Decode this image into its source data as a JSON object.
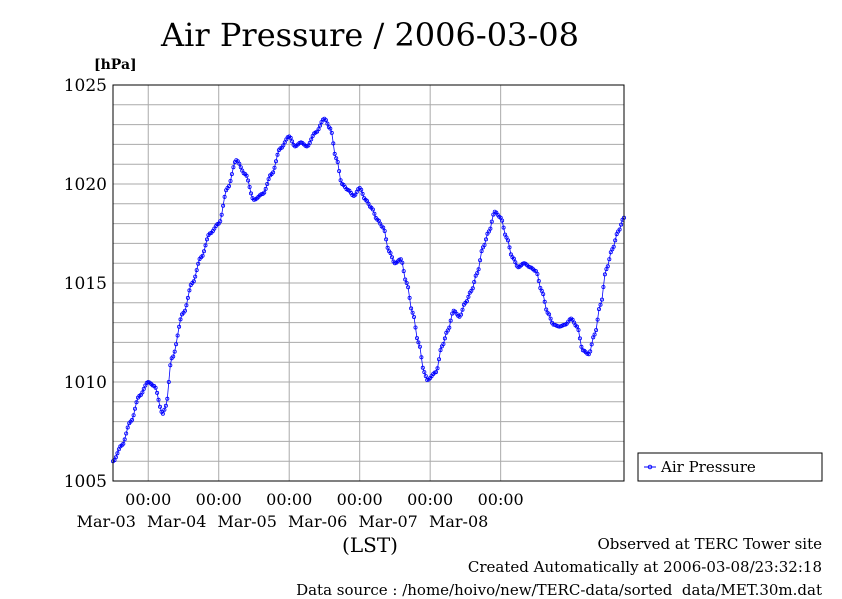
{
  "chart_data": {
    "type": "line",
    "title": "Air Pressure / 2006-03-08",
    "ylabel": "[hPa]",
    "xlabel": "(LST)",
    "ylim": [
      1005,
      1025
    ],
    "yticks": [
      1005,
      1010,
      1015,
      1020,
      1025
    ],
    "xlim": [
      "2006-03-02T12:00",
      "2006-03-08T24:00"
    ],
    "xticks": [
      {
        "time": "00:00",
        "date": "Mar-03"
      },
      {
        "time": "00:00",
        "date": "Mar-04"
      },
      {
        "time": "00:00",
        "date": "Mar-05"
      },
      {
        "time": "00:00",
        "date": "Mar-06"
      },
      {
        "time": "00:00",
        "date": "Mar-07"
      },
      {
        "time": "00:00",
        "date": "Mar-08"
      }
    ],
    "grid": true,
    "legend": "right",
    "series": [
      {
        "name": "Air Pressure",
        "color": "#0000ff",
        "x_hours_from": "2006-03-02T12:00",
        "points": [
          [
            0,
            1006.0
          ],
          [
            3,
            1006.8
          ],
          [
            6,
            1008.0
          ],
          [
            9,
            1009.3
          ],
          [
            12,
            1010.0
          ],
          [
            14,
            1009.8
          ],
          [
            17,
            1008.4
          ],
          [
            18,
            1008.8
          ],
          [
            20,
            1011.2
          ],
          [
            24,
            1013.5
          ],
          [
            27,
            1015.0
          ],
          [
            30,
            1016.3
          ],
          [
            33,
            1017.5
          ],
          [
            36,
            1018.0
          ],
          [
            39,
            1019.8
          ],
          [
            42,
            1021.2
          ],
          [
            45,
            1020.5
          ],
          [
            48,
            1019.2
          ],
          [
            51,
            1019.5
          ],
          [
            54,
            1020.5
          ],
          [
            57,
            1021.8
          ],
          [
            60,
            1022.4
          ],
          [
            62,
            1021.9
          ],
          [
            64,
            1022.1
          ],
          [
            66,
            1021.9
          ],
          [
            69,
            1022.6
          ],
          [
            72,
            1023.3
          ],
          [
            74,
            1022.8
          ],
          [
            76,
            1021.3
          ],
          [
            78,
            1020.0
          ],
          [
            80,
            1019.7
          ],
          [
            82,
            1019.4
          ],
          [
            84,
            1019.8
          ],
          [
            86,
            1019.2
          ],
          [
            88,
            1018.8
          ],
          [
            90,
            1018.2
          ],
          [
            92,
            1017.8
          ],
          [
            94,
            1016.6
          ],
          [
            96,
            1016.0
          ],
          [
            98,
            1016.2
          ],
          [
            100,
            1015.0
          ],
          [
            102,
            1013.5
          ],
          [
            104,
            1012.0
          ],
          [
            106,
            1010.5
          ],
          [
            107,
            1010.1
          ],
          [
            110,
            1010.5
          ],
          [
            112,
            1011.8
          ],
          [
            114,
            1012.6
          ],
          [
            116,
            1013.6
          ],
          [
            118,
            1013.3
          ],
          [
            120,
            1014.0
          ],
          [
            122,
            1014.6
          ],
          [
            124,
            1015.5
          ],
          [
            126,
            1016.8
          ],
          [
            128,
            1017.6
          ],
          [
            130,
            1018.6
          ],
          [
            132,
            1018.3
          ],
          [
            134,
            1017.3
          ],
          [
            136,
            1016.3
          ],
          [
            138,
            1015.8
          ],
          [
            140,
            1016.0
          ],
          [
            142,
            1015.8
          ],
          [
            144,
            1015.6
          ],
          [
            146,
            1014.6
          ],
          [
            148,
            1013.5
          ],
          [
            150,
            1012.9
          ],
          [
            152,
            1012.8
          ],
          [
            154,
            1012.9
          ],
          [
            156,
            1013.2
          ],
          [
            158,
            1012.8
          ],
          [
            160,
            1011.6
          ],
          [
            162,
            1011.4
          ],
          [
            164,
            1012.4
          ],
          [
            166,
            1013.9
          ],
          [
            168,
            1015.7
          ],
          [
            170,
            1016.7
          ],
          [
            172,
            1017.6
          ],
          [
            174,
            1018.3
          ]
        ]
      }
    ]
  },
  "footer": {
    "observed": "Observed at TERC Tower site",
    "created": "Created Automatically at 2006-03-08/23:32:18",
    "source": "Data source : /home/hoivo/new/TERC-data/sorted  data/MET.30m.dat"
  }
}
